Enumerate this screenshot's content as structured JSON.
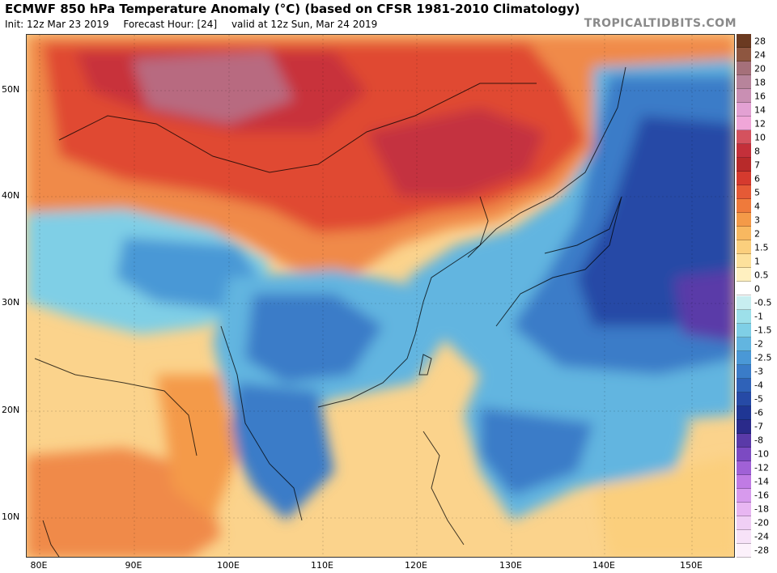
{
  "header": {
    "title": "ECMWF 850 hPa Temperature Anomaly (°C) (based on CFSR 1981-2010 Climatology)",
    "init": "Init: 12z Mar 23 2019",
    "forecast_hour": "Forecast Hour: [24]",
    "valid": "valid at 12z Sun, Mar 24 2019",
    "brand": "TROPICALTIDBITS.COM"
  },
  "map": {
    "lat_labels": [
      "50N",
      "40N",
      "30N",
      "20N",
      "10N"
    ],
    "lon_labels": [
      "80E",
      "90E",
      "100E",
      "110E",
      "120E",
      "130E",
      "140E",
      "150E"
    ]
  },
  "colorbar": {
    "labels": [
      "28",
      "24",
      "20",
      "18",
      "16",
      "14",
      "12",
      "10",
      "8",
      "7",
      "6",
      "5",
      "4",
      "3",
      "2",
      "1.5",
      "1",
      "0.5",
      "0",
      "-0.5",
      "-1",
      "-1.5",
      "-2",
      "-2.5",
      "-3",
      "-4",
      "-5",
      "-6",
      "-7",
      "-8",
      "-10",
      "-12",
      "-14",
      "-16",
      "-18",
      "-20",
      "-24",
      "-28"
    ],
    "colors": [
      "#6b3a21",
      "#8e5640",
      "#a5707a",
      "#b7849b",
      "#c98fb3",
      "#e3a1d3",
      "#f0a6d8",
      "#d4525e",
      "#c4303a",
      "#b82a2a",
      "#d53a2e",
      "#e55a36",
      "#ef7a3b",
      "#f49a48",
      "#f8b860",
      "#fbcf7d",
      "#fde19c",
      "#fff0c0",
      "#ffffff",
      "#c8eef0",
      "#9de0ea",
      "#7fcfe6",
      "#62b5e0",
      "#4a98d6",
      "#3a7cc8",
      "#2f62b8",
      "#264aa6",
      "#1f3694",
      "#2a2a8a",
      "#5a3aa8",
      "#7c4ac2",
      "#a061d6",
      "#c07be4",
      "#d79aed",
      "#e8b6f2",
      "#f0cff5",
      "#f7e2f8",
      "#fcf1fb"
    ]
  }
}
